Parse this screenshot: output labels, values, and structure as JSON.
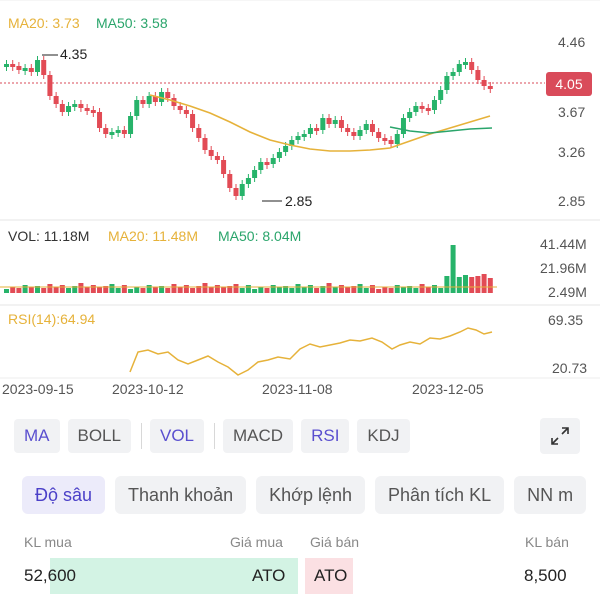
{
  "chart": {
    "ma_label_ma20": "MA20: 3.73",
    "ma_label_ma50": "MA50: 3.58",
    "price_axis": [
      "4.46",
      "3.67",
      "3.26",
      "2.85"
    ],
    "current_price": "4.05",
    "high_marker": "4.35",
    "low_marker": "2.85",
    "vol_label": "VOL: 11.18M",
    "vol_ma20": "MA20: 11.48M",
    "vol_ma50": "MA50: 8.04M",
    "vol_axis": [
      "41.44M",
      "21.96M",
      "2.49M"
    ],
    "rsi_label": "RSI(14):64.94",
    "rsi_axis": [
      "69.35",
      "20.73"
    ],
    "dates": [
      "2023-09-15",
      "2023-10-12",
      "2023-11-08",
      "2023-12-05"
    ],
    "colors": {
      "up": "#27b36a",
      "down": "#e24b55",
      "ma20": "#e6b23a",
      "ma50": "#2aa56b",
      "rsi": "#e6b23a",
      "price_badge": "#d94b5a"
    }
  },
  "indicators": [
    {
      "label": "MA",
      "active": true
    },
    {
      "label": "BOLL",
      "active": false
    },
    {
      "label": "VOL",
      "active": true
    },
    {
      "label": "MACD",
      "active": false
    },
    {
      "label": "RSI",
      "active": true
    },
    {
      "label": "KDJ",
      "active": false
    }
  ],
  "tabs": [
    "Độ sâu",
    "Thanh khoản",
    "Khớp lệnh",
    "Phân tích KL",
    "NN m"
  ],
  "orderbook": {
    "kl_mua_label": "KL mua",
    "gia_mua_label": "Giá mua",
    "gia_ban_label": "Giá bán",
    "kl_ban_label": "KL bán",
    "kl_mua": "52,600",
    "gia_mua": "ATO",
    "gia_ban": "ATO",
    "kl_ban": "8,500"
  }
}
